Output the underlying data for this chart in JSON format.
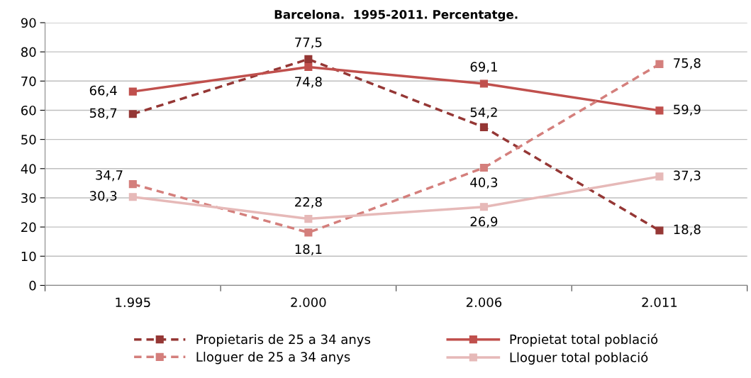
{
  "chart_data": {
    "type": "line",
    "title": "Barcelona.  1995-2011. Percentatge.",
    "categories": [
      "1.995",
      "2.000",
      "2.006",
      "2.011"
    ],
    "series": [
      {
        "name": "Propietaris de 25 a 34 anys",
        "color": "#953735",
        "line_style": "dashed",
        "values": [
          58.7,
          77.5,
          54.2,
          18.8
        ],
        "value_labels": [
          "58,7",
          "77,5",
          "54,2",
          "18,8"
        ]
      },
      {
        "name": "Propietat total població",
        "color": "#c0504d",
        "line_style": "solid",
        "values": [
          66.4,
          74.8,
          69.1,
          59.9
        ],
        "value_labels": [
          "66,4",
          "74,8",
          "69,1",
          "59,9"
        ]
      },
      {
        "name": "Lloguer de 25 a 34 anys",
        "color": "#d47f7c",
        "line_style": "dashed",
        "values": [
          34.7,
          18.1,
          40.3,
          75.8
        ],
        "value_labels": [
          "34,7",
          "18,1",
          "40,3",
          "75,8"
        ]
      },
      {
        "name": "Lloguer total població",
        "color": "#e6b9b8",
        "line_style": "solid",
        "values": [
          30.3,
          22.8,
          26.9,
          37.3
        ],
        "value_labels": [
          "30,3",
          "22,8",
          "26,9",
          "37,3"
        ]
      }
    ],
    "ylim": [
      0,
      90
    ],
    "yticks": [
      0,
      10,
      20,
      30,
      40,
      50,
      60,
      70,
      80,
      90
    ],
    "grid": "y",
    "legend": "bottom",
    "marker": "square"
  }
}
